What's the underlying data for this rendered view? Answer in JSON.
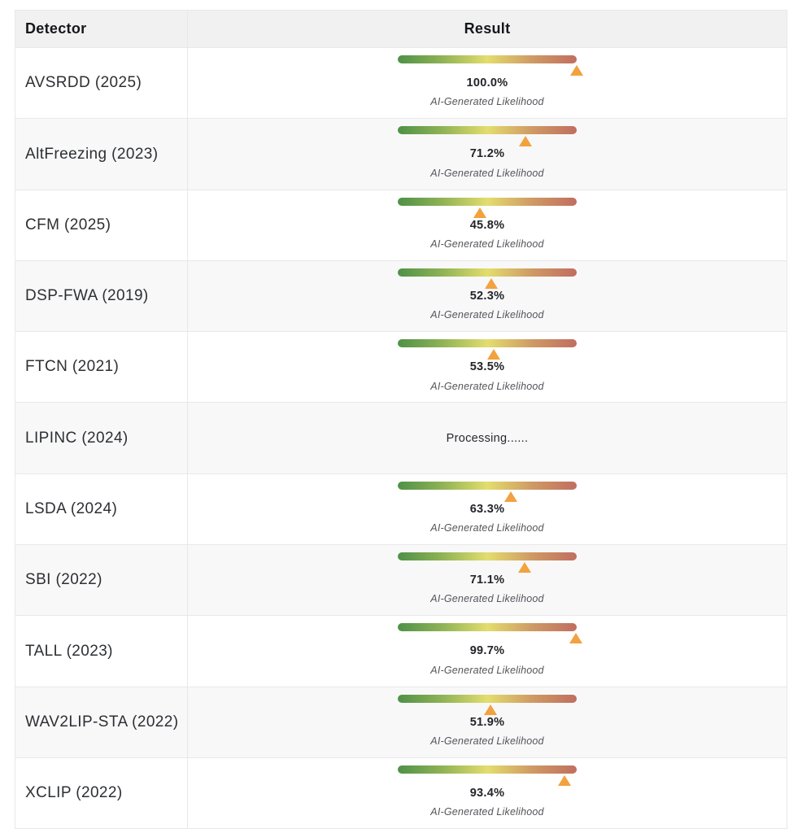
{
  "table": {
    "columns": [
      {
        "label": "Detector"
      },
      {
        "label": "Result"
      }
    ],
    "sub_label": "AI-Generated Likelihood",
    "processing_label": "Processing......",
    "rows": [
      {
        "detector": "AVSRDD (2025)",
        "status": "done",
        "likelihood_pct": 100.0,
        "pct_label": "100.0%"
      },
      {
        "detector": "AltFreezing (2023)",
        "status": "done",
        "likelihood_pct": 71.2,
        "pct_label": "71.2%"
      },
      {
        "detector": "CFM (2025)",
        "status": "done",
        "likelihood_pct": 45.8,
        "pct_label": "45.8%"
      },
      {
        "detector": "DSP-FWA (2019)",
        "status": "done",
        "likelihood_pct": 52.3,
        "pct_label": "52.3%"
      },
      {
        "detector": "FTCN (2021)",
        "status": "done",
        "likelihood_pct": 53.5,
        "pct_label": "53.5%"
      },
      {
        "detector": "LIPINC (2024)",
        "status": "processing"
      },
      {
        "detector": "LSDA (2024)",
        "status": "done",
        "likelihood_pct": 63.3,
        "pct_label": "63.3%"
      },
      {
        "detector": "SBI (2022)",
        "status": "done",
        "likelihood_pct": 71.1,
        "pct_label": "71.1%"
      },
      {
        "detector": "TALL (2023)",
        "status": "done",
        "likelihood_pct": 99.7,
        "pct_label": "99.7%"
      },
      {
        "detector": "WAV2LIP-STA (2022)",
        "status": "done",
        "likelihood_pct": 51.9,
        "pct_label": "51.9%"
      },
      {
        "detector": "XCLIP (2022)",
        "status": "done",
        "likelihood_pct": 93.4,
        "pct_label": "93.4%"
      }
    ],
    "colors": {
      "header_bg": "#f1f1f2",
      "alt_row_bg": "#f8f8f9",
      "border": "#e8e8ea",
      "marker": "#f2a23e",
      "gradient_stops": [
        "#4e9148",
        "#8fb355",
        "#e3dd6e",
        "#cf9a64",
        "#c06e60"
      ]
    }
  }
}
